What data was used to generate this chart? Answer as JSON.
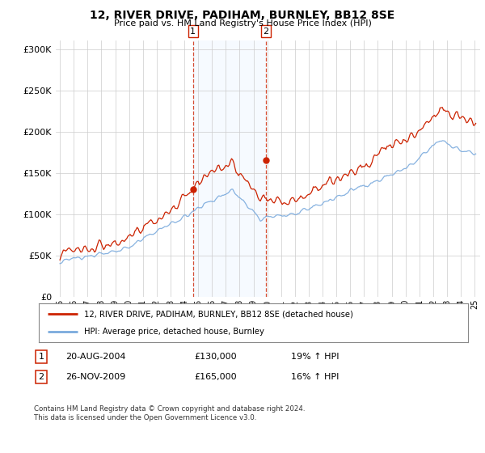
{
  "title": "12, RIVER DRIVE, PADIHAM, BURNLEY, BB12 8SE",
  "subtitle": "Price paid vs. HM Land Registry's House Price Index (HPI)",
  "legend_line1": "12, RIVER DRIVE, PADIHAM, BURNLEY, BB12 8SE (detached house)",
  "legend_line2": "HPI: Average price, detached house, Burnley",
  "footnote": "Contains HM Land Registry data © Crown copyright and database right 2024.\nThis data is licensed under the Open Government Licence v3.0.",
  "transaction1_label": "1",
  "transaction1_date": "20-AUG-2004",
  "transaction1_price": "£130,000",
  "transaction1_hpi": "19% ↑ HPI",
  "transaction2_label": "2",
  "transaction2_date": "26-NOV-2009",
  "transaction2_price": "£165,000",
  "transaction2_hpi": "16% ↑ HPI",
  "sale1_year": 2004.63,
  "sale1_price": 130000,
  "sale2_year": 2009.9,
  "sale2_price": 165000,
  "hpi_color": "#7aaadd",
  "price_color": "#cc2200",
  "shade_color": "#ddeeff",
  "vline_color": "#cc2200",
  "background_color": "#ffffff",
  "grid_color": "#cccccc",
  "ylim": [
    0,
    310000
  ],
  "xlim_start": 1994.7,
  "xlim_end": 2025.4,
  "xtick_years": [
    1995,
    1996,
    1997,
    1998,
    1999,
    2000,
    2001,
    2002,
    2003,
    2004,
    2005,
    2006,
    2007,
    2008,
    2009,
    2010,
    2011,
    2012,
    2013,
    2014,
    2015,
    2016,
    2017,
    2018,
    2019,
    2020,
    2021,
    2022,
    2023,
    2024,
    2025
  ]
}
